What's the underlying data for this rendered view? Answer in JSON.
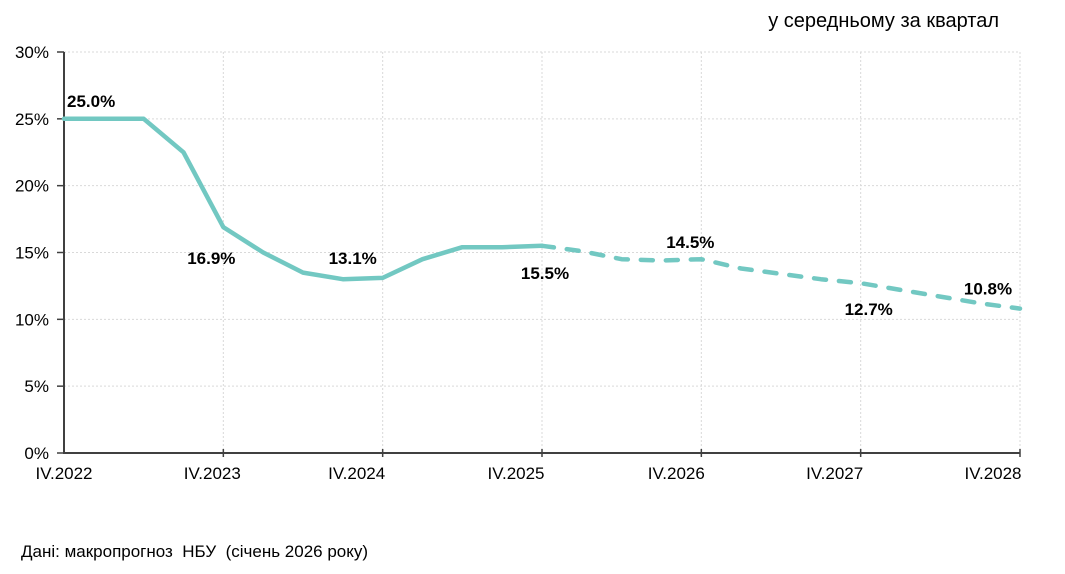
{
  "chart_data": {
    "type": "line",
    "title": "у середньому за квартал",
    "source_note": "Дані: макропрогноз  НБУ  (січень 2026 року)",
    "legend_position": "none",
    "grid": true,
    "y_axis": {
      "min": 0,
      "max": 30,
      "step": 5,
      "tick_labels": [
        "0%",
        "5%",
        "10%",
        "15%",
        "20%",
        "25%",
        "30%"
      ]
    },
    "x_axis": {
      "tick_labels": [
        "IV.2022",
        "IV.2023",
        "IV.2024",
        "IV.2025",
        "IV.2026",
        "IV.2027",
        "IV.2028"
      ],
      "quarters_per_tick": 4,
      "total_quarters": 24
    },
    "line_color": "#72C8C2",
    "axis_color": "#404040",
    "grid_color": "#D9D9D9",
    "series": [
      {
        "name": "fact",
        "style": "solid",
        "start_index": 0,
        "values": [
          25.0,
          25.0,
          25.0,
          22.5,
          16.9,
          15.0,
          13.5,
          13.0,
          13.1,
          14.5,
          15.4,
          15.4,
          15.5
        ]
      },
      {
        "name": "forecast",
        "style": "dashed",
        "start_index": 12,
        "values": [
          15.5,
          15.1,
          14.5,
          14.4,
          14.5,
          13.8,
          13.4,
          13.0,
          12.7,
          12.2,
          11.7,
          11.2,
          10.8
        ]
      }
    ],
    "annotations": [
      {
        "text": "25.0%",
        "index": 0,
        "value": 25.0,
        "pos": "above-start"
      },
      {
        "text": "16.9%",
        "index": 4,
        "value": 16.9,
        "pos": "below-left"
      },
      {
        "text": "13.1%",
        "index": 8,
        "value": 13.1,
        "pos": "above-left"
      },
      {
        "text": "15.5%",
        "index": 12,
        "value": 15.5,
        "pos": "below"
      },
      {
        "text": "14.5%",
        "index": 16,
        "value": 14.5,
        "pos": "above"
      },
      {
        "text": "12.7%",
        "index": 20,
        "value": 12.7,
        "pos": "below-right"
      },
      {
        "text": "10.8%",
        "index": 24,
        "value": 10.8,
        "pos": "above-end"
      }
    ]
  }
}
